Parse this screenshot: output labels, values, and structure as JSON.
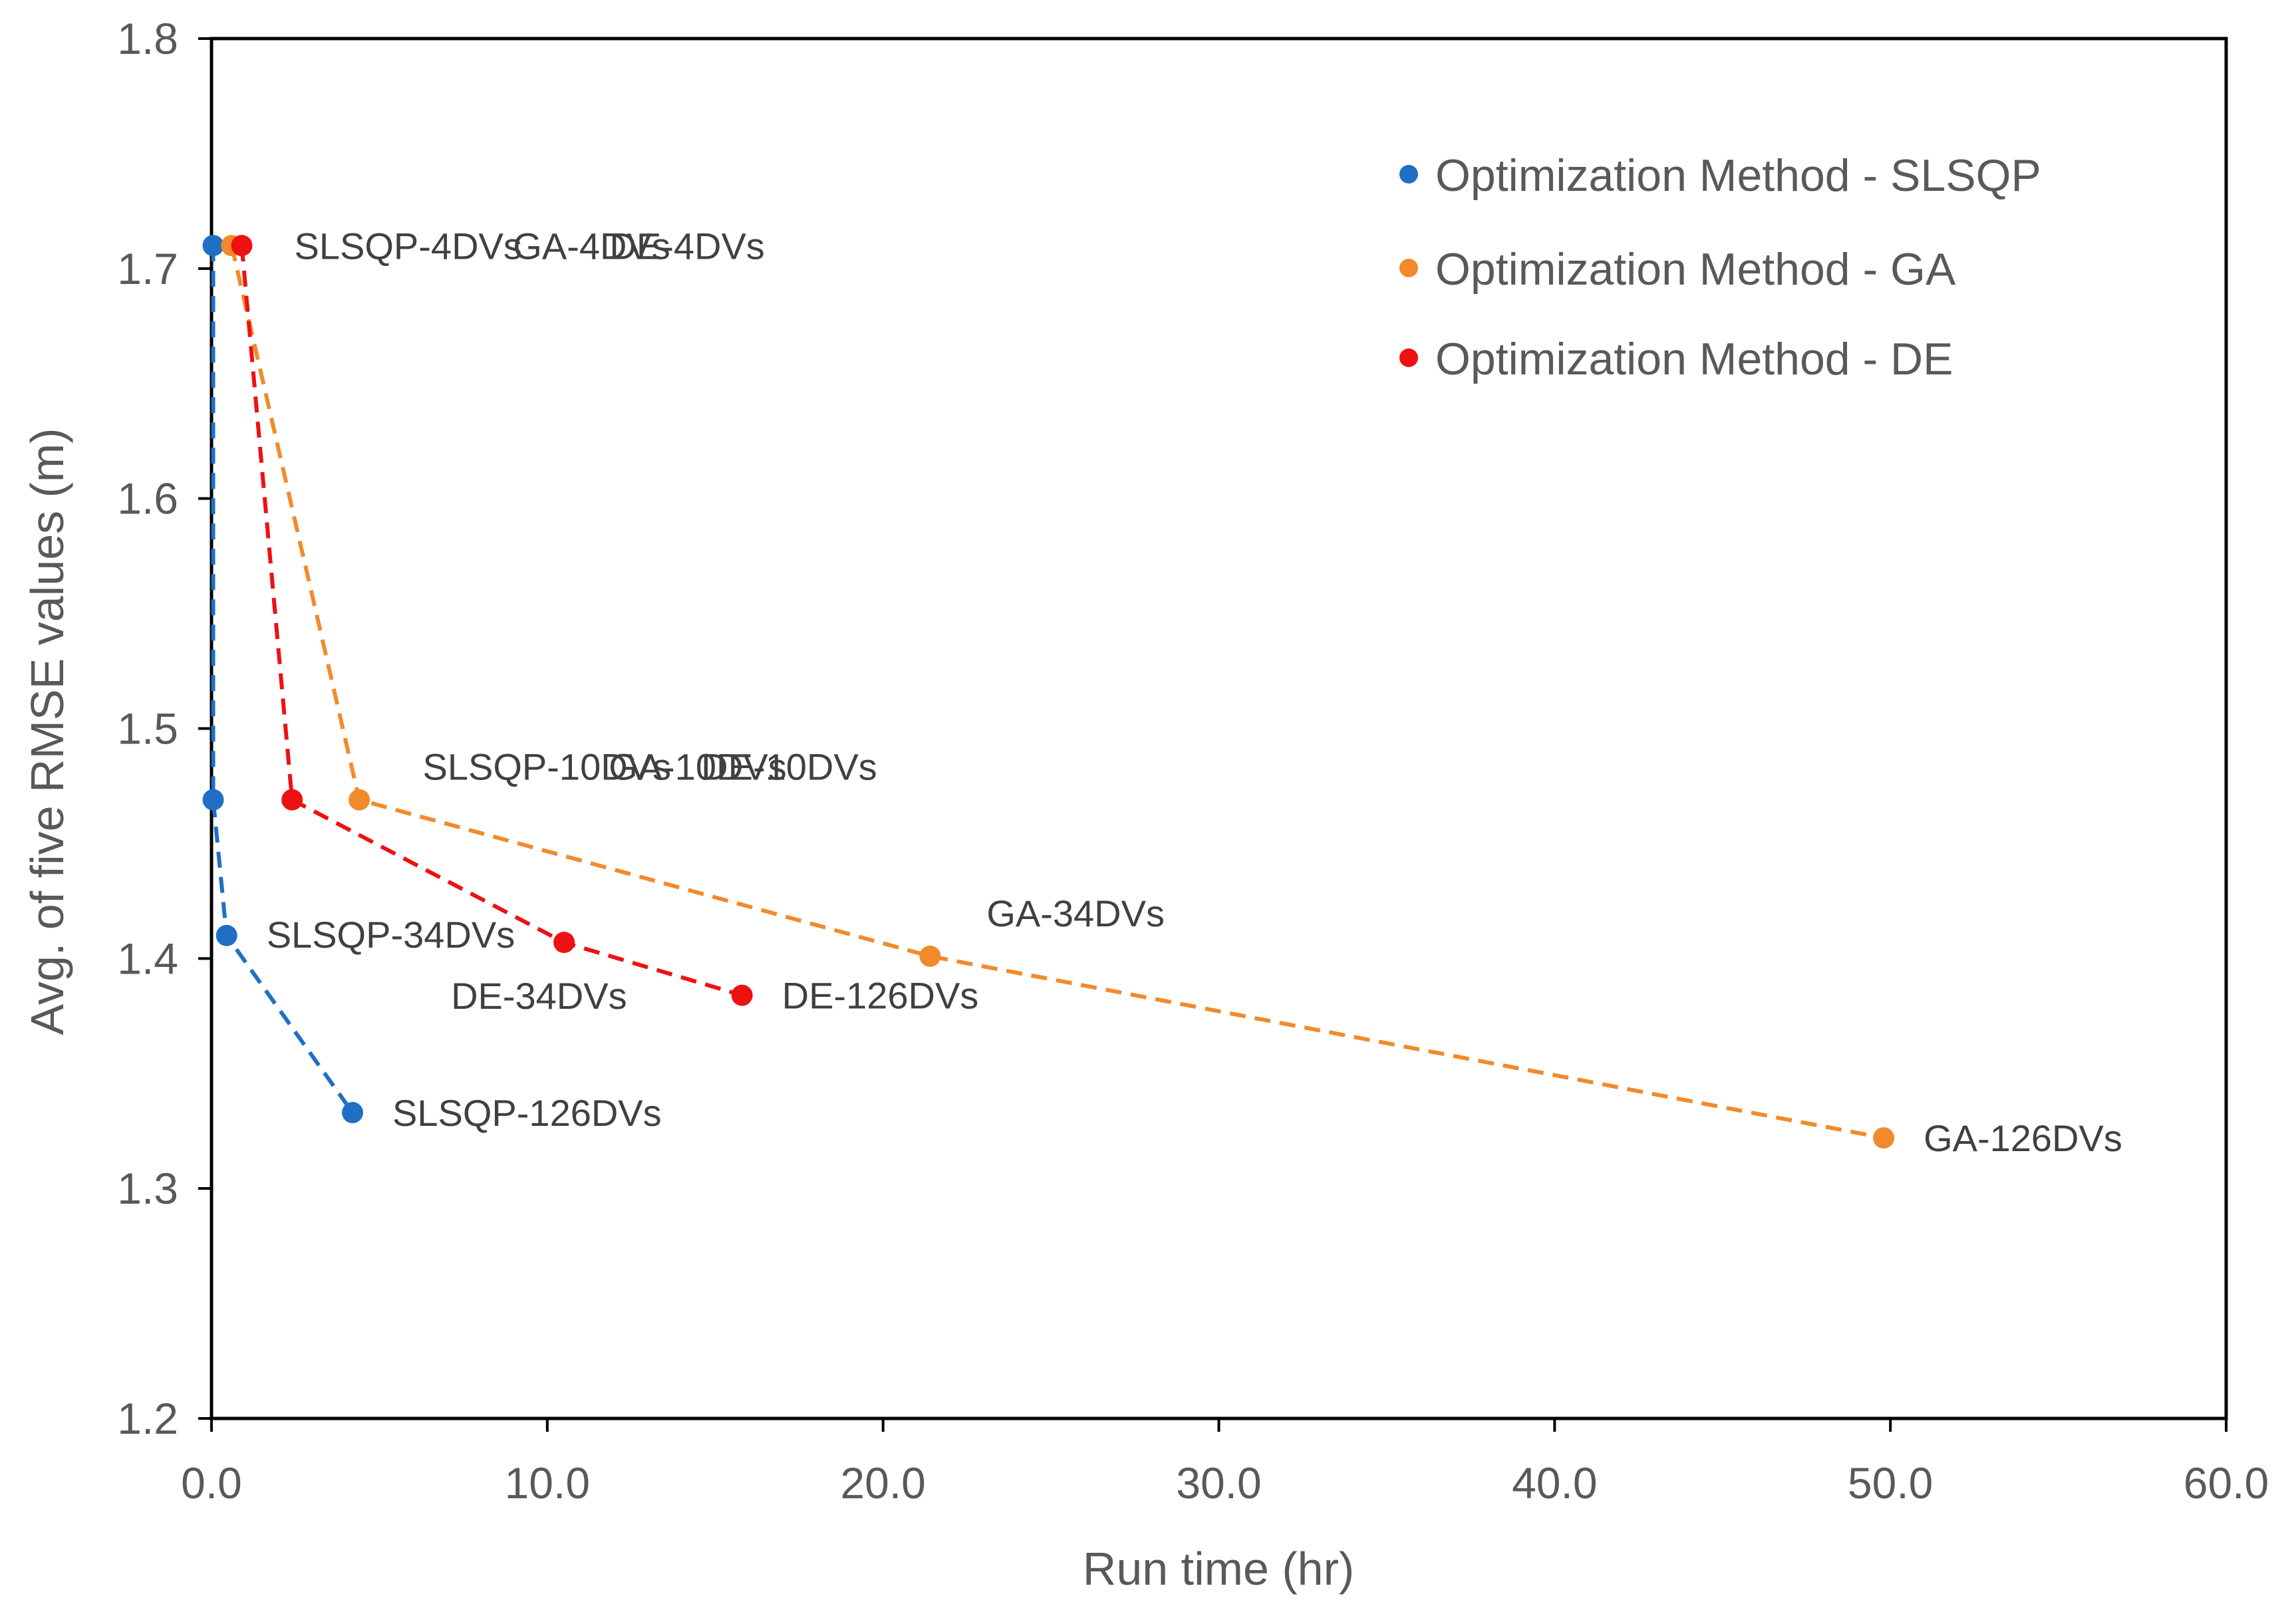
{
  "chart_data": {
    "type": "line",
    "title": "",
    "xlabel": "Run time (hr)",
    "ylabel": "Avg. of five RMSE values (m)",
    "xlim": [
      0,
      60
    ],
    "ylim": [
      1.2,
      1.8
    ],
    "xticks": [
      "0.0",
      "10.0",
      "20.0",
      "30.0",
      "40.0",
      "50.0",
      "60.0"
    ],
    "xtick_values": [
      0,
      10,
      20,
      30,
      40,
      50,
      60
    ],
    "yticks": [
      "1.2",
      "1.3",
      "1.4",
      "1.5",
      "1.6",
      "1.7",
      "1.8"
    ],
    "ytick_values": [
      1.2,
      1.3,
      1.4,
      1.5,
      1.6,
      1.7,
      1.8
    ],
    "grid": false,
    "legend_position": "top-right",
    "series": [
      {
        "name": "Optimization Method - SLSQP",
        "color": "#1f6fc5",
        "line_style": "dashed",
        "points": [
          {
            "x": 0.05,
            "y": 1.71,
            "label": "SLSQP-4DVs"
          },
          {
            "x": 0.05,
            "y": 1.469,
            "label": "SLSQP-10DVs"
          },
          {
            "x": 0.45,
            "y": 1.41,
            "label": "SLSQP-34DVs"
          },
          {
            "x": 4.2,
            "y": 1.333,
            "label": "SLSQP-126DVs"
          }
        ]
      },
      {
        "name": "Optimization Method - GA",
        "color": "#f28a2b",
        "line_style": "dashed",
        "points": [
          {
            "x": 0.6,
            "y": 1.71,
            "label": "GA-4DVs"
          },
          {
            "x": 4.4,
            "y": 1.469,
            "label": "GA-10DVs"
          },
          {
            "x": 21.4,
            "y": 1.401,
            "label": "GA-34DVs"
          },
          {
            "x": 49.8,
            "y": 1.322,
            "label": "GA-126DVs"
          }
        ]
      },
      {
        "name": "Optimization Method - DE",
        "color": "#ee1111",
        "line_style": "dashed",
        "points": [
          {
            "x": 0.9,
            "y": 1.71,
            "label": "DE-4DVs"
          },
          {
            "x": 2.4,
            "y": 1.469,
            "label": "DE-10DVs"
          },
          {
            "x": 10.5,
            "y": 1.407,
            "label": "DE-34DVs"
          },
          {
            "x": 15.8,
            "y": 1.384,
            "label": "DE-126DVs"
          }
        ]
      }
    ]
  }
}
